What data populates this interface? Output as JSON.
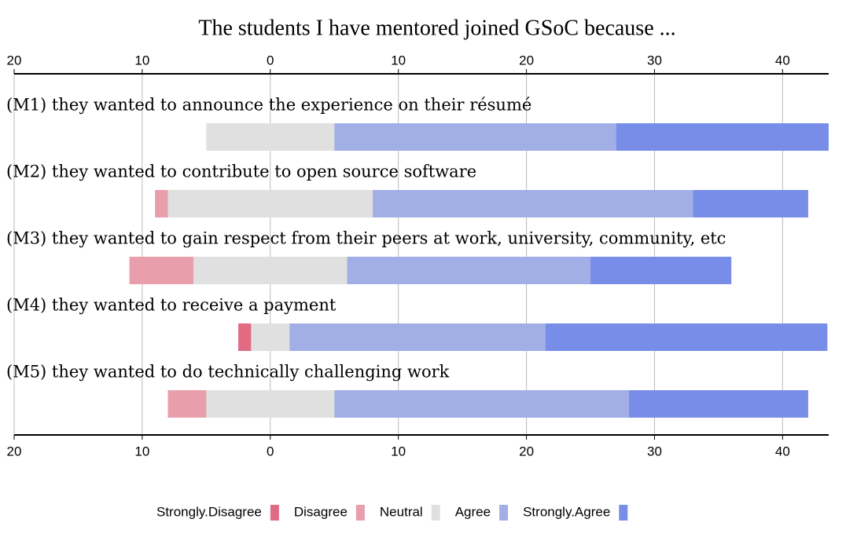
{
  "chart_data": {
    "type": "diverging_bar",
    "title": "The students I have mentored joined GSoC because ...",
    "categories": [
      "(M1) they wanted to announce the experience on their résumé",
      "(M2) they wanted to contribute to open source software",
      "(M3) they wanted to gain respect from their peers at work, university, community, etc",
      "(M4) they wanted to receive a payment",
      "(M5) they wanted to do technically challenging work"
    ],
    "series": [
      {
        "name": "Strongly.Disagree",
        "color": "#e16b83",
        "values": [
          0,
          0,
          0,
          1,
          0
        ]
      },
      {
        "name": "Disagree",
        "color": "#e89eab",
        "values": [
          0,
          1,
          5,
          0,
          3
        ]
      },
      {
        "name": "Neutral",
        "color": "#e0e0e0",
        "values": [
          10,
          16,
          12,
          3,
          10
        ]
      },
      {
        "name": "Agree",
        "color": "#a2aee6",
        "values": [
          22,
          25,
          19,
          20,
          23
        ]
      },
      {
        "name": "Strongly.Agree",
        "color": "#788de8",
        "values": [
          17,
          9,
          11,
          22,
          14
        ]
      }
    ],
    "xlim": [
      -20,
      43.6
    ],
    "xticks": [
      {
        "value": -20,
        "label": "20"
      },
      {
        "value": -10,
        "label": "10"
      },
      0,
      10,
      20,
      30,
      40
    ],
    "grid": true,
    "legend": "bottom"
  }
}
